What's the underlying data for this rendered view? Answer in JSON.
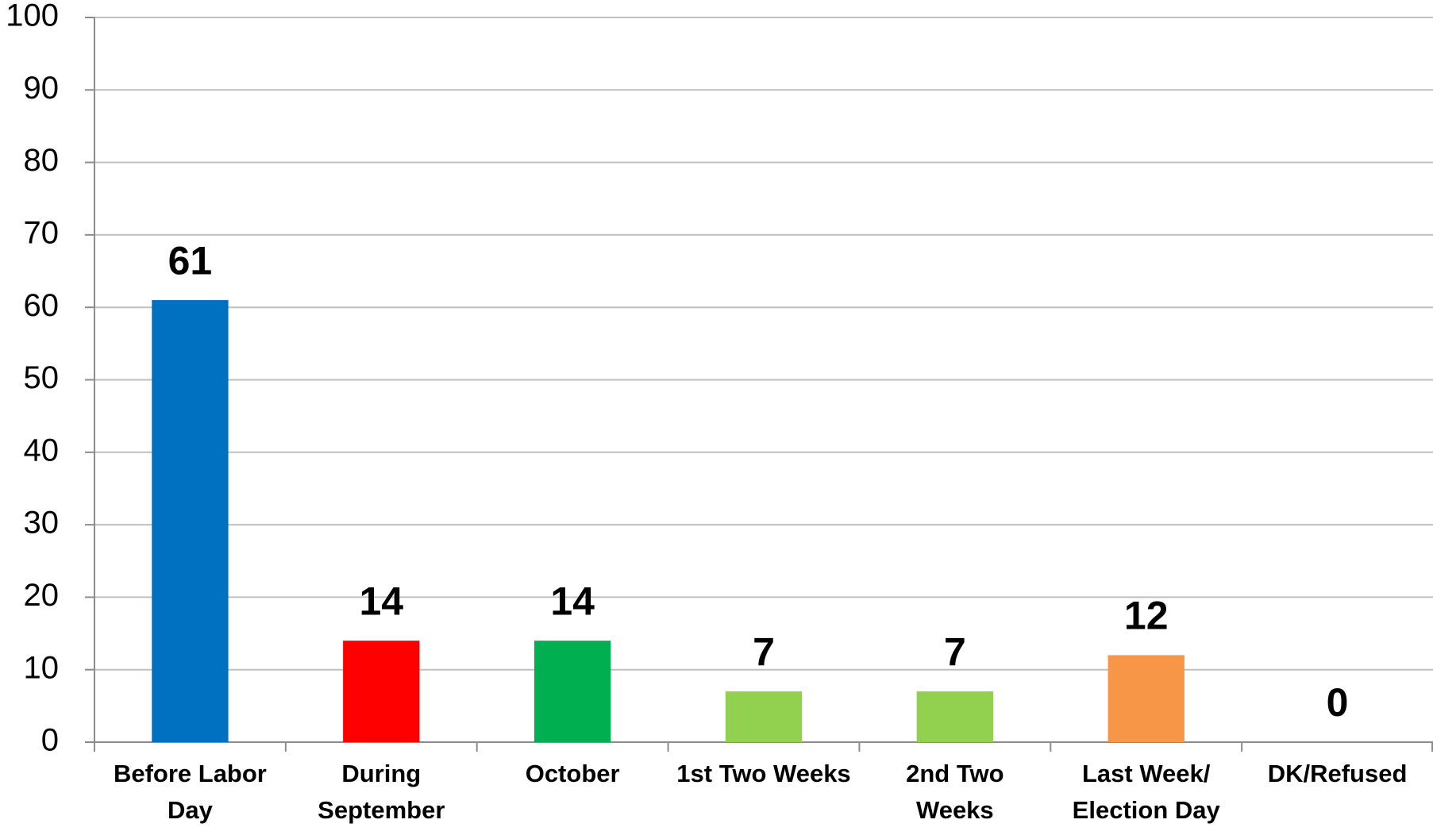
{
  "chart_data": {
    "type": "bar",
    "categories": [
      "Before Labor\nDay",
      "During\nSeptember",
      "October",
      "1st Two Weeks",
      "2nd Two\nWeeks",
      "Last Week/\nElection Day",
      "DK/Refused"
    ],
    "values": [
      61,
      14,
      14,
      7,
      7,
      12,
      0
    ],
    "colors": [
      "#0070c0",
      "#ff0000",
      "#00b050",
      "#92d050",
      "#92d050",
      "#f79646",
      "#a5a5a5"
    ],
    "ylim": [
      0,
      100
    ],
    "yticks": [
      0,
      10,
      20,
      30,
      40,
      50,
      60,
      70,
      80,
      90,
      100
    ],
    "grid": true
  }
}
